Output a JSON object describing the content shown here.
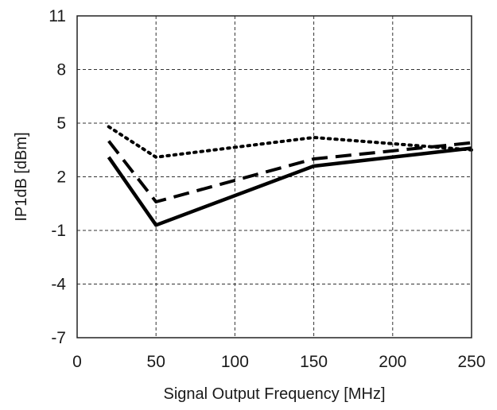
{
  "chart_data": {
    "type": "line",
    "title": "",
    "xlabel": "Signal Output Frequency [MHz]",
    "ylabel": "IP1dB [dBm]",
    "xlim": [
      0,
      250
    ],
    "ylim": [
      -7,
      11
    ],
    "xticks": [
      0,
      50,
      100,
      150,
      200,
      250
    ],
    "yticks": [
      -7,
      -4,
      -1,
      2,
      5,
      8,
      11
    ],
    "grid": true,
    "legend": "none",
    "series": [
      {
        "style": "solid",
        "color": "#000000",
        "x": [
          20,
          50,
          150,
          250
        ],
        "y": [
          3.1,
          -0.7,
          2.6,
          3.6
        ]
      },
      {
        "style": "dashed",
        "color": "#000000",
        "x": [
          20,
          50,
          150,
          250
        ],
        "y": [
          4.0,
          0.6,
          3.0,
          3.9
        ]
      },
      {
        "style": "dotted",
        "color": "#000000",
        "x": [
          20,
          50,
          150,
          250
        ],
        "y": [
          4.8,
          3.1,
          4.2,
          3.5
        ]
      }
    ]
  }
}
